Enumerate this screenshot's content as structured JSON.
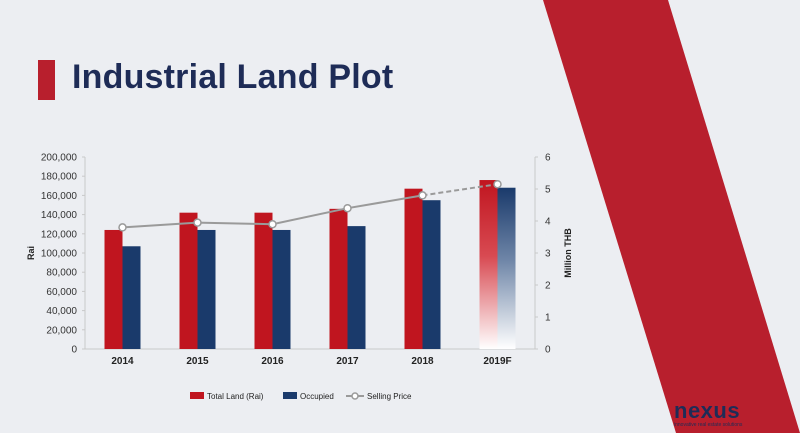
{
  "page": {
    "title": "Industrial Land Plot"
  },
  "brand": {
    "logo": "nexus",
    "tagline": "innovative real estate solutions"
  },
  "colors": {
    "bar_total": "#c0151f",
    "bar_occupied": "#1a3a6b",
    "line": "#9a9a9a",
    "title": "#1e2c57",
    "accent": "#b81f2d"
  },
  "chart_data": {
    "type": "bar",
    "title": "",
    "categories": [
      "2014",
      "2015",
      "2016",
      "2017",
      "2018",
      "2019F"
    ],
    "series": [
      {
        "name": "Total Land (Rai)",
        "axis": "left",
        "type": "bar",
        "values": [
          124000,
          142000,
          142000,
          146000,
          167000,
          176000
        ]
      },
      {
        "name": "Occupied",
        "axis": "left",
        "type": "bar",
        "values": [
          107000,
          124000,
          124000,
          128000,
          155000,
          168000
        ]
      },
      {
        "name": "Selling Price",
        "axis": "right",
        "type": "line",
        "values": [
          3.8,
          3.95,
          3.9,
          4.4,
          4.8,
          5.15
        ],
        "dashed_from_index": 4
      }
    ],
    "ylabel": "Rai",
    "ylabel_right": "Million THB",
    "ylim": [
      0,
      200000
    ],
    "ylim_right": [
      0,
      6
    ],
    "yticks": [
      "0",
      "20,000",
      "40,000",
      "60,000",
      "80,000",
      "100,000",
      "120,000",
      "140,000",
      "160,000",
      "180,000",
      "200,000"
    ],
    "yticks_right": [
      "0",
      "1",
      "2",
      "3",
      "4",
      "5",
      "6"
    ],
    "legend_position": "bottom-center",
    "grid": false
  }
}
